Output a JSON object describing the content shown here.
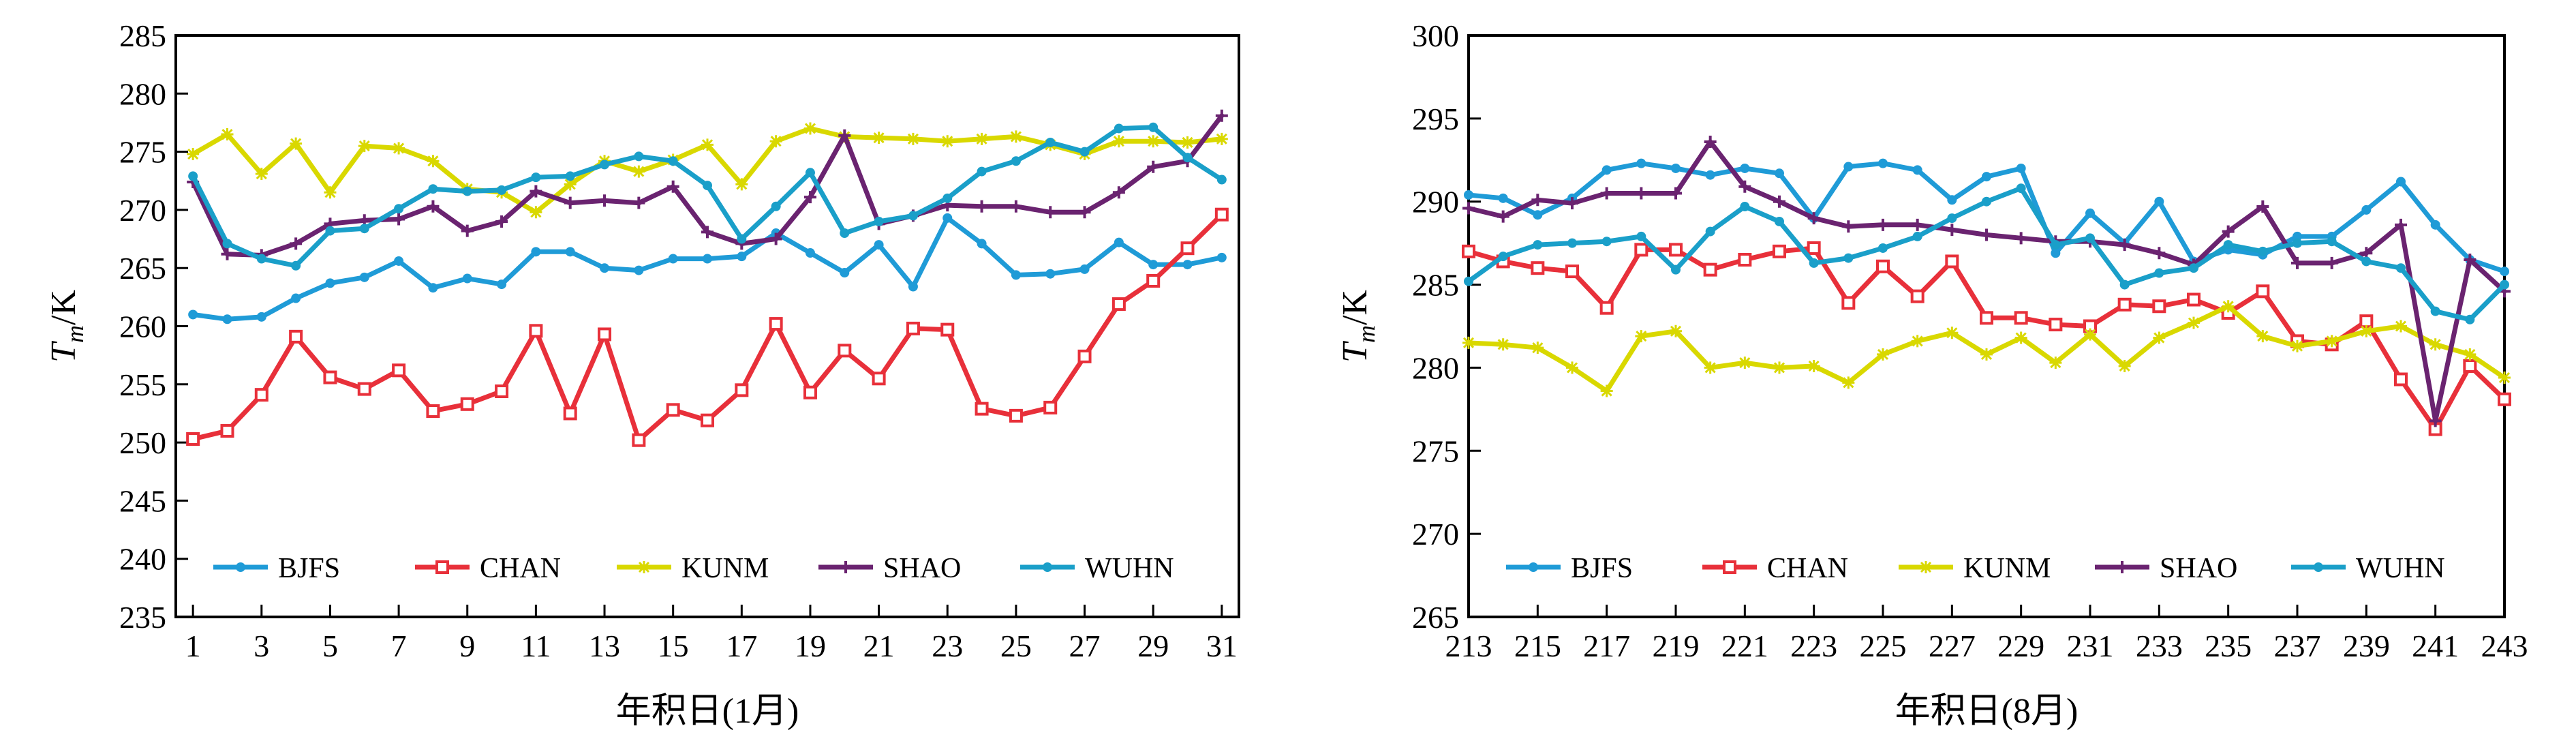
{
  "chart_data": [
    {
      "type": "line",
      "xlabel": "年积日(1月)",
      "ylabel_main": "T",
      "ylabel_sub": "m",
      "ylabel_unit": "/K",
      "ylim": [
        235,
        285
      ],
      "yticks": [
        235,
        240,
        245,
        250,
        255,
        260,
        265,
        270,
        275,
        280,
        285
      ],
      "xlim": [
        0.5,
        31.5
      ],
      "xticks": [
        1,
        3,
        5,
        7,
        9,
        11,
        13,
        15,
        17,
        19,
        21,
        23,
        25,
        27,
        29,
        31
      ],
      "x": [
        1,
        2,
        3,
        4,
        5,
        6,
        7,
        8,
        9,
        10,
        11,
        12,
        13,
        14,
        15,
        16,
        17,
        18,
        19,
        20,
        21,
        22,
        23,
        24,
        25,
        26,
        27,
        28,
        29,
        30,
        31
      ],
      "legend": [
        "BJFS",
        "CHAN",
        "KUNM",
        "SHAO",
        "WUHN"
      ],
      "series": [
        {
          "name": "BJFS",
          "color": "#1f9bd7",
          "marker": "dot",
          "values": [
            261.0,
            260.6,
            260.8,
            262.4,
            263.7,
            264.2,
            265.6,
            263.3,
            264.1,
            263.6,
            266.4,
            266.4,
            265.0,
            264.8,
            265.8,
            265.8,
            266.0,
            268.0,
            266.3,
            264.6,
            267.0,
            263.4,
            269.3,
            267.1,
            264.4,
            264.5,
            264.9,
            267.2,
            265.3,
            265.3,
            265.9
          ]
        },
        {
          "name": "CHAN",
          "color": "#e8303a",
          "marker": "square",
          "values": [
            250.3,
            251.0,
            254.1,
            259.1,
            255.6,
            254.6,
            256.2,
            252.7,
            253.3,
            254.4,
            259.6,
            252.5,
            259.3,
            250.2,
            252.8,
            251.9,
            254.5,
            260.2,
            254.3,
            257.9,
            255.5,
            259.8,
            259.7,
            252.9,
            252.3,
            253.0,
            257.4,
            261.9,
            263.9,
            266.7,
            269.6
          ]
        },
        {
          "name": "KUNM",
          "color": "#d9d800",
          "marker": "star",
          "values": [
            274.8,
            276.5,
            273.1,
            275.7,
            271.5,
            275.5,
            275.3,
            274.2,
            271.8,
            271.5,
            269.8,
            272.2,
            274.2,
            273.3,
            274.3,
            275.6,
            272.2,
            275.9,
            277.0,
            276.3,
            276.2,
            276.1,
            275.9,
            276.1,
            276.3,
            275.6,
            274.8,
            275.9,
            275.9,
            275.8,
            276.1
          ]
        },
        {
          "name": "SHAO",
          "color": "#6a2370",
          "marker": "plus",
          "values": [
            272.4,
            266.2,
            266.1,
            267.1,
            268.8,
            269.1,
            269.2,
            270.3,
            268.2,
            269.0,
            271.6,
            270.6,
            270.8,
            270.6,
            272.0,
            268.1,
            267.1,
            267.5,
            271.1,
            276.4,
            268.8,
            269.5,
            270.4,
            270.3,
            270.3,
            269.8,
            269.8,
            271.5,
            273.7,
            274.2,
            278.1
          ]
        },
        {
          "name": "WUHN",
          "color": "#1a9fc9",
          "marker": "dot",
          "values": [
            272.9,
            267.1,
            265.8,
            265.2,
            268.2,
            268.4,
            270.1,
            271.8,
            271.6,
            271.7,
            272.8,
            272.9,
            273.9,
            274.6,
            274.2,
            272.1,
            267.5,
            270.3,
            273.2,
            268.0,
            269.0,
            269.5,
            271.0,
            273.3,
            274.2,
            275.8,
            275.0,
            277.0,
            277.1,
            274.5,
            272.6
          ]
        }
      ]
    },
    {
      "type": "line",
      "xlabel": "年积日(8月)",
      "ylabel_main": "T",
      "ylabel_sub": "m",
      "ylabel_unit": "/K",
      "ylim": [
        265,
        300
      ],
      "yticks": [
        265,
        270,
        275,
        280,
        285,
        290,
        295,
        300
      ],
      "xlim": [
        213,
        243
      ],
      "xticks": [
        213,
        215,
        217,
        219,
        221,
        223,
        225,
        227,
        229,
        231,
        233,
        235,
        237,
        239,
        241,
        243
      ],
      "x": [
        213,
        214,
        215,
        216,
        217,
        218,
        219,
        220,
        221,
        222,
        223,
        224,
        225,
        226,
        227,
        228,
        229,
        230,
        231,
        232,
        233,
        234,
        235,
        236,
        237,
        238,
        239,
        240,
        241,
        242,
        243
      ],
      "legend": [
        "BJFS",
        "CHAN",
        "KUNM",
        "SHAO",
        "WUHN"
      ],
      "series": [
        {
          "name": "BJFS",
          "color": "#1f9bd7",
          "marker": "dot",
          "values": [
            290.4,
            290.2,
            289.2,
            290.2,
            291.9,
            292.3,
            292.0,
            291.6,
            292.0,
            291.7,
            289.0,
            292.1,
            292.3,
            291.9,
            290.1,
            291.5,
            292.0,
            286.9,
            289.3,
            287.5,
            290.0,
            286.4,
            287.1,
            286.8,
            287.9,
            287.9,
            289.5,
            291.2,
            288.6,
            286.5,
            285.8
          ]
        },
        {
          "name": "CHAN",
          "color": "#e8303a",
          "marker": "square",
          "values": [
            287.0,
            286.4,
            286.0,
            285.8,
            283.6,
            287.1,
            287.1,
            285.9,
            286.5,
            287.0,
            287.2,
            283.9,
            286.1,
            284.3,
            286.4,
            283.0,
            283.0,
            282.6,
            282.5,
            283.8,
            283.7,
            284.1,
            283.3,
            284.6,
            281.6,
            281.4,
            282.8,
            279.3,
            276.3,
            280.1,
            278.1
          ]
        },
        {
          "name": "KUNM",
          "color": "#d9d800",
          "marker": "star",
          "values": [
            281.5,
            281.4,
            281.2,
            280.0,
            278.6,
            281.9,
            282.2,
            280.0,
            280.3,
            280.0,
            280.1,
            279.1,
            280.8,
            281.6,
            282.1,
            280.8,
            281.8,
            280.3,
            282.0,
            280.1,
            281.8,
            282.7,
            283.7,
            281.9,
            281.3,
            281.6,
            282.2,
            282.5,
            281.4,
            280.8,
            279.4
          ]
        },
        {
          "name": "SHAO",
          "color": "#6a2370",
          "marker": "plus",
          "values": [
            289.6,
            289.1,
            290.1,
            289.9,
            290.5,
            290.5,
            290.5,
            293.6,
            290.9,
            290.0,
            289.0,
            288.5,
            288.6,
            288.6,
            288.3,
            288.0,
            287.8,
            287.6,
            287.6,
            287.4,
            286.9,
            286.2,
            288.2,
            289.7,
            286.3,
            286.3,
            286.9,
            288.6,
            276.8,
            286.5,
            284.6
          ]
        },
        {
          "name": "WUHN",
          "color": "#1a9fc9",
          "marker": "dot",
          "values": [
            285.2,
            286.7,
            287.4,
            287.5,
            287.6,
            287.9,
            285.9,
            288.2,
            289.7,
            288.8,
            286.3,
            286.6,
            287.2,
            287.9,
            289.0,
            290.0,
            290.8,
            287.4,
            287.8,
            285.0,
            285.7,
            286.0,
            287.4,
            287.0,
            287.5,
            287.6,
            286.4,
            286.0,
            283.4,
            282.9,
            285.0
          ]
        }
      ]
    }
  ]
}
